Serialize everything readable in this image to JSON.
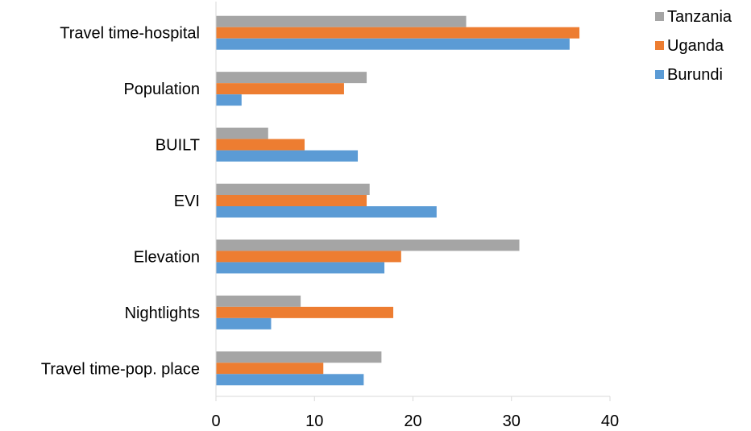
{
  "chart_data": {
    "type": "bar",
    "orientation": "horizontal",
    "categories": [
      "Travel time-hospital",
      "Population",
      "BUILT",
      "EVI",
      "Elevation",
      "Nightlights",
      "Travel time-pop. place"
    ],
    "series": [
      {
        "name": "Tanzania",
        "color": "#a5a5a5",
        "values": [
          25.4,
          15.3,
          5.3,
          15.6,
          30.8,
          8.6,
          16.8
        ]
      },
      {
        "name": "Uganda",
        "color": "#ed7d31",
        "values": [
          36.9,
          13.0,
          9.0,
          15.3,
          18.8,
          18.0,
          10.9
        ]
      },
      {
        "name": "Burundi",
        "color": "#5b9bd5",
        "values": [
          35.9,
          2.6,
          14.4,
          22.4,
          17.1,
          5.6,
          15.0
        ]
      }
    ],
    "xlim": [
      0,
      40
    ],
    "xticks": [
      "0",
      "10",
      "20",
      "30",
      "40"
    ],
    "title": "",
    "xlabel": "",
    "ylabel": "",
    "grid": false,
    "legend_position": "top-right",
    "legend_order": [
      "Tanzania",
      "Uganda",
      "Burundi"
    ]
  }
}
